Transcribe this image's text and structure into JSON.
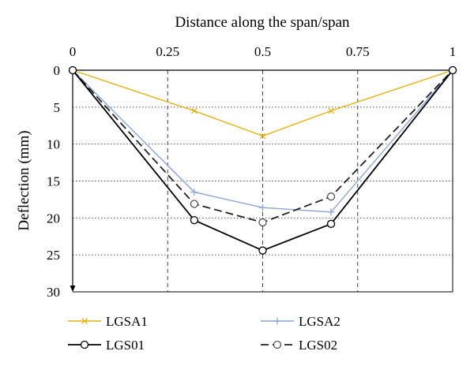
{
  "chart_data": {
    "type": "line",
    "title": "",
    "xlabel": "Distance along the span/span",
    "ylabel": "Deflection (mm)",
    "x_axis_position": "top",
    "y_axis_inverted": true,
    "xlim": [
      0,
      1
    ],
    "ylim": [
      0,
      30
    ],
    "x_ticks": [
      0,
      0.25,
      0.5,
      0.75,
      1
    ],
    "x_tick_labels": [
      "0",
      "0.25",
      "0.5",
      "0.75",
      "1"
    ],
    "y_ticks": [
      0,
      5,
      10,
      15,
      20,
      25,
      30
    ],
    "y_tick_labels": [
      "0",
      "5",
      "10",
      "15",
      "20",
      "25",
      "30"
    ],
    "grid": {
      "vertical": "dashed",
      "horizontal": "dotted"
    },
    "legend_position": "bottom",
    "series": [
      {
        "name": "LGSA1",
        "color": "#E8B10E",
        "line": "solid",
        "marker": "x",
        "x": [
          0,
          0.32,
          0.5,
          0.68,
          1
        ],
        "y": [
          0,
          5.5,
          8.9,
          5.5,
          0
        ]
      },
      {
        "name": "LGSA2",
        "color": "#8EA6D4",
        "line": "solid",
        "marker": "plus",
        "x": [
          0,
          0.32,
          0.5,
          0.68,
          1
        ],
        "y": [
          0,
          16.5,
          18.6,
          19.2,
          0
        ]
      },
      {
        "name": "LGS01",
        "color": "#000000",
        "line": "solid",
        "marker": "circle",
        "x": [
          0,
          0.32,
          0.5,
          0.68,
          1
        ],
        "y": [
          0,
          20.3,
          24.4,
          20.8,
          0
        ]
      },
      {
        "name": "LGS02",
        "color": "#222222",
        "line": "dashed",
        "marker": "circle",
        "x": [
          0,
          0.32,
          0.5,
          0.68,
          1
        ],
        "y": [
          0,
          18.1,
          20.6,
          17.1,
          0
        ]
      }
    ]
  }
}
